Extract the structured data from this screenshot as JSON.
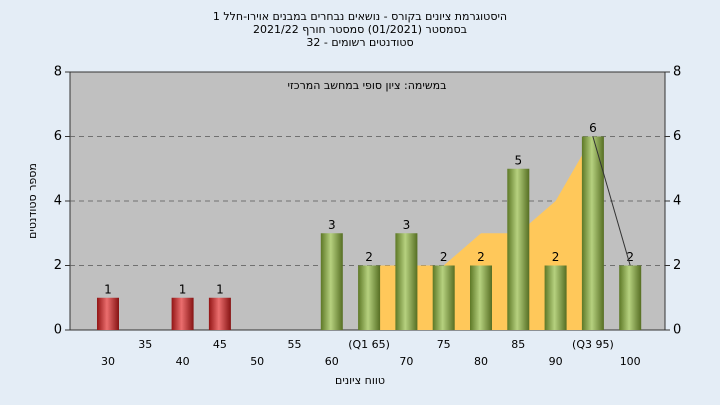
{
  "chart_data": {
    "type": "bar",
    "title": [
      "היסטוגרמת ציונים בקורס - נושאים נבחרים במבנים אוירו-חלל 1",
      "בסמסטר  (01/2021)  סמסטר חורף 2021/22",
      "סטודנטים רשומים - 32"
    ],
    "annotation": "במשימה: ציון סופי במחשב המרכזי",
    "x_label": "טווח ציונים",
    "y_label": "מספר סטודנטים",
    "categories": [
      "30",
      "35",
      "40",
      "45",
      "50",
      "55",
      "60",
      "(Q1 65)",
      "70",
      "75",
      "80",
      "85",
      "90",
      "(Q3 95)",
      "100"
    ],
    "values": [
      1,
      null,
      1,
      1,
      null,
      null,
      3,
      2,
      3,
      2,
      2,
      5,
      2,
      6,
      2
    ],
    "colors": [
      "#e02020",
      null,
      "#e02020",
      "#e02020",
      null,
      null,
      "#8fb83a",
      "#8fb83a",
      "#8fb83a",
      "#8fb83a",
      "#8fb83a",
      "#8fb83a",
      "#8fb83a",
      "#8fb83a",
      "#8fb83a"
    ],
    "area": {
      "color": "#ffc85a",
      "values": [
        null,
        null,
        null,
        null,
        null,
        null,
        null,
        2,
        2,
        2,
        3,
        3,
        4,
        6,
        null
      ]
    },
    "line": {
      "color": "#333333",
      "values": [
        null,
        null,
        null,
        null,
        null,
        null,
        null,
        null,
        null,
        null,
        null,
        null,
        null,
        6,
        2
      ]
    },
    "ylim": [
      0,
      8
    ],
    "yticks": [
      0,
      2,
      4,
      6,
      8
    ],
    "grid": true,
    "plot_background": "#c0c0c0"
  }
}
